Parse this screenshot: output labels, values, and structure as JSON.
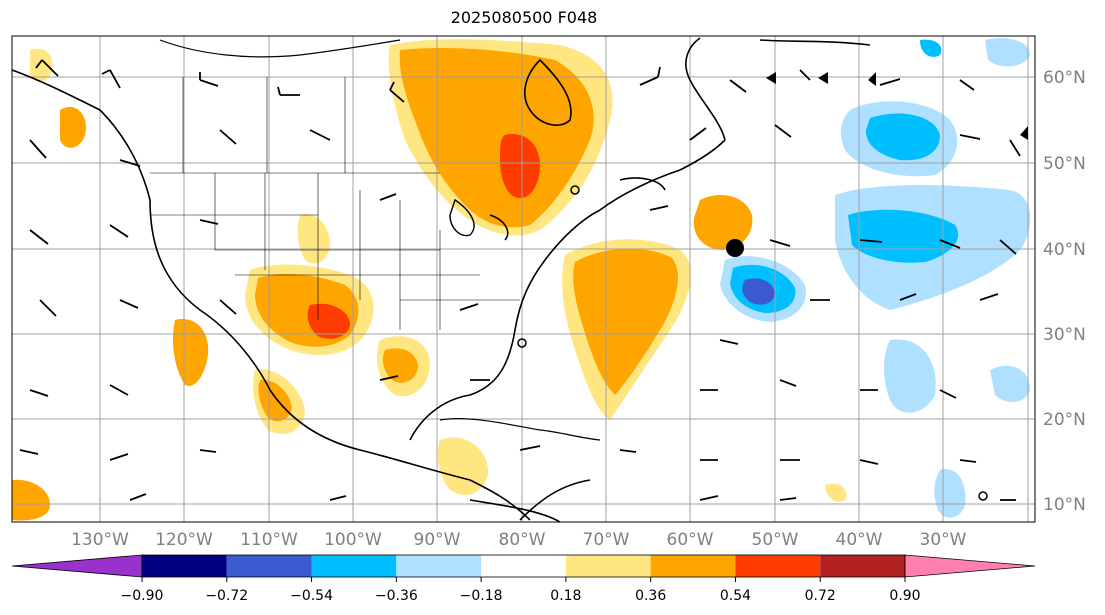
{
  "title": "2025080500 F048",
  "longitude_labels": [
    "130°W",
    "120°W",
    "110°W",
    "100°W",
    "90°W",
    "80°W",
    "70°W",
    "60°W",
    "50°W",
    "40°W",
    "30°W"
  ],
  "latitude_labels": [
    "60°N",
    "50°N",
    "40°N",
    "30°N",
    "20°N",
    "10°N"
  ],
  "colorbar": {
    "levels": [
      "−0.90",
      "−0.72",
      "−0.54",
      "−0.36",
      "−0.18",
      "0.18",
      "0.36",
      "0.54",
      "0.72",
      "0.90"
    ],
    "colors": [
      "#9932cc",
      "#000080",
      "#3a5bd0",
      "#00bfff",
      "#b0e0ff",
      "#ffffff",
      "#ffe680",
      "#ffa500",
      "#ff3c00",
      "#b22222",
      "#ff80b0"
    ]
  },
  "colors": {
    "coastline": "#000000",
    "grid": "#a0a0a0"
  },
  "markers": {
    "highlight_point": "black-dot"
  }
}
